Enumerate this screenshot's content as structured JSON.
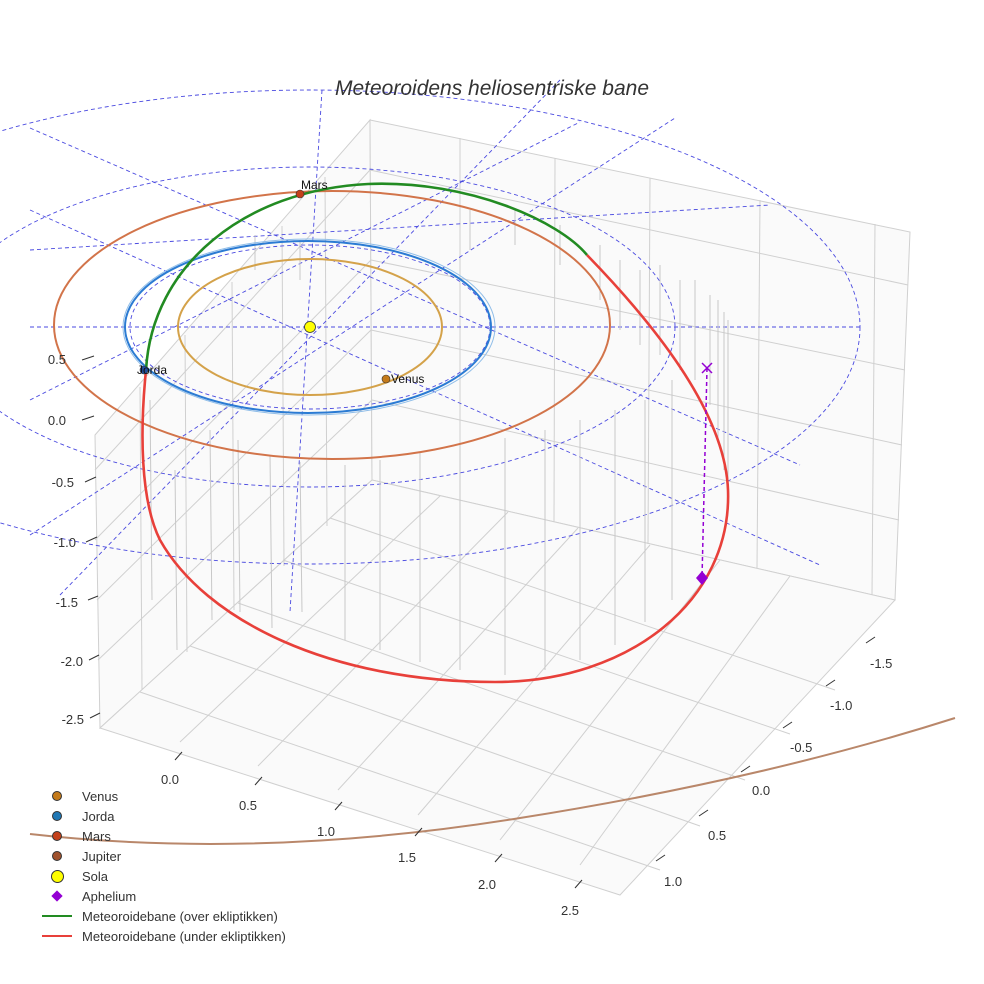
{
  "chart_data": {
    "type": "scatter3d",
    "title": "Meteoroidens heliosentriske bane",
    "axes": {
      "x": {
        "ticks": [
          "0.0",
          "0.5",
          "1.0",
          "1.5",
          "2.0",
          "2.5"
        ],
        "range": [
          -0.3,
          2.7
        ]
      },
      "y": {
        "ticks": [
          "-1.5",
          "-1.0",
          "-0.5",
          "0.0",
          "0.5",
          "1.0"
        ],
        "range": [
          -1.8,
          1.2
        ]
      },
      "z": {
        "ticks": [
          "0.5",
          "0.0",
          "-0.5",
          "-1.0",
          "-1.5",
          "-2.0",
          "-2.5"
        ],
        "range": [
          -2.7,
          0.7
        ]
      },
      "grid": true,
      "helper_grid_ecliptic": "polar, dashed blue"
    },
    "series": [
      {
        "name": "Venus",
        "kind": "orbit+point",
        "semi_major_axis_au": 0.72,
        "color": "#cc8822",
        "point_label": "Venus"
      },
      {
        "name": "Jorda",
        "kind": "orbit+point",
        "semi_major_axis_au": 1.0,
        "color": "#1f77b4",
        "point_label": "Jorda"
      },
      {
        "name": "Mars",
        "kind": "orbit+point",
        "semi_major_axis_au": 1.52,
        "color": "#c4522a",
        "point_label": "Mars"
      },
      {
        "name": "Jupiter",
        "kind": "orbit",
        "semi_major_axis_au": 5.2,
        "color": "#a0522d"
      },
      {
        "name": "Sola",
        "kind": "point",
        "position": [
          0,
          0,
          0
        ],
        "color": "#ffff00"
      },
      {
        "name": "Aphelium",
        "kind": "point",
        "symbol": "diamond",
        "color": "#9400d3"
      },
      {
        "name": "Meteoroidebane (over ekliptikken)",
        "kind": "line",
        "color": "#228b22"
      },
      {
        "name": "Meteoroidebane (under ekliptikken)",
        "kind": "line",
        "color": "#e8403a"
      }
    ],
    "legend": [
      {
        "label": "Venus",
        "symbol": "dot",
        "color": "#c47a1a"
      },
      {
        "label": "Jorda",
        "symbol": "dot",
        "color": "#1f77b4"
      },
      {
        "label": "Mars",
        "symbol": "dot",
        "color": "#c4401a"
      },
      {
        "label": "Jupiter",
        "symbol": "dot",
        "color": "#a0522d"
      },
      {
        "label": "Sola",
        "symbol": "dot-big",
        "color": "#ffff00"
      },
      {
        "label": "Aphelium",
        "symbol": "diamond",
        "color": "#9400d3"
      },
      {
        "label": "Meteoroidebane (over ekliptikken)",
        "symbol": "line",
        "color": "#228b22"
      },
      {
        "label": "Meteoroidebane (under ekliptikken)",
        "symbol": "line",
        "color": "#e8403a"
      }
    ]
  }
}
